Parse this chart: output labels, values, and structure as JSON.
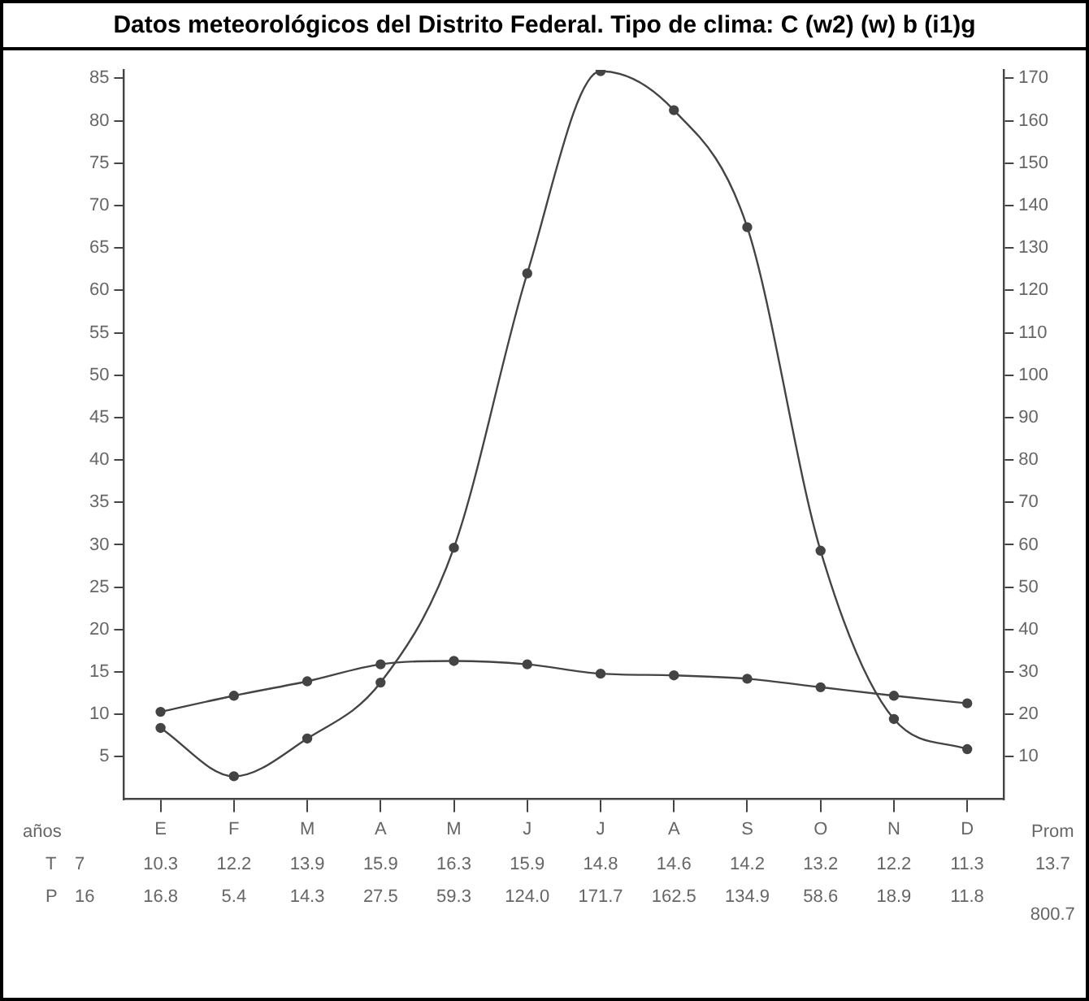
{
  "chart_data": {
    "type": "line",
    "title": "Datos meteorológicos del Distrito Federal. Tipo de clima: C (w2) (w) b (i1)g",
    "categories": [
      "E",
      "F",
      "M",
      "A",
      "M",
      "J",
      "J",
      "A",
      "S",
      "O",
      "N",
      "D"
    ],
    "series": [
      {
        "color": "#444444",
        "values": [
          10.3,
          12.2,
          13.9,
          15.9,
          16.3,
          15.9,
          14.8,
          14.6,
          14.2,
          13.2,
          12.2,
          11.3
        ],
        "value_labels": [
          "10.3",
          "12.2",
          "13.9",
          "15.9",
          "16.3",
          "15.9",
          "14.8",
          "14.6",
          "14.2",
          "13.2",
          "12.2",
          "11.3"
        ]
      },
      {
        "color": "#444444",
        "axis": "y2",
        "values": [
          16.8,
          5.4,
          14.3,
          27.5,
          59.3,
          124.0,
          171.7,
          162.5,
          134.9,
          58.6,
          18.9,
          11.8
        ],
        "value_labels": [
          "16.8",
          "5.4",
          "14.3",
          "27.5",
          "59.3",
          "124.0",
          "171.7",
          "162.5",
          "134.9",
          "58.6",
          "18.9",
          "11.8"
        ]
      }
    ],
    "ylim": [
      0,
      86
    ],
    "yticks": [
      5,
      10,
      15,
      20,
      25,
      30,
      35,
      40,
      45,
      50,
      55,
      60,
      65,
      70,
      75,
      80,
      85
    ],
    "y2lim": [
      0,
      172
    ],
    "y2ticks": [
      10,
      20,
      30,
      40,
      50,
      60,
      70,
      80,
      90,
      100,
      110,
      120,
      130,
      140,
      150,
      160,
      170
    ],
    "marker": "circle",
    "grid": false,
    "legend": false,
    "annotations": [
      "años",
      "T",
      "7",
      "P",
      "16",
      "Prom",
      "13.7",
      "800.7"
    ]
  }
}
